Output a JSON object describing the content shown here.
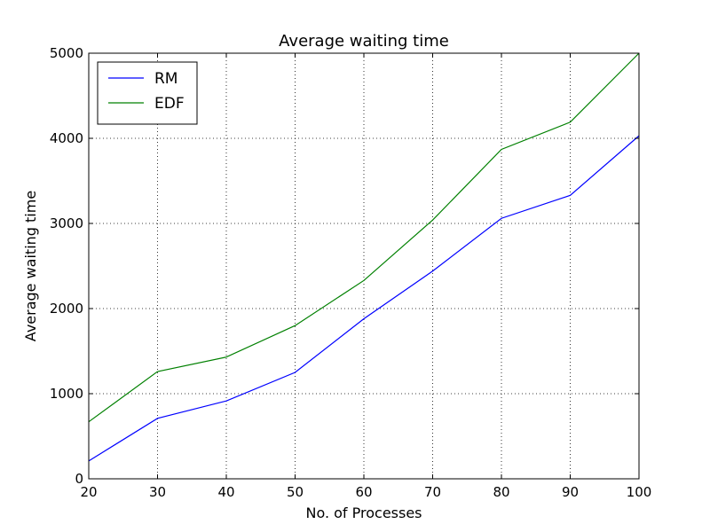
{
  "chart_data": {
    "type": "line",
    "title": "Average waiting time",
    "xlabel": "No. of Processes",
    "ylabel": "Average waiting time",
    "x": [
      20,
      30,
      40,
      50,
      60,
      70,
      80,
      90,
      100
    ],
    "xlim": [
      20,
      100
    ],
    "ylim": [
      0,
      5000
    ],
    "xticks": [
      20,
      30,
      40,
      50,
      60,
      70,
      80,
      90,
      100
    ],
    "yticks": [
      0,
      1000,
      2000,
      3000,
      4000,
      5000
    ],
    "grid": true,
    "legend_position": "top-left",
    "series": [
      {
        "name": "RM",
        "color": "#0000ff",
        "values": [
          210,
          710,
          915,
          1250,
          1880,
          2440,
          3060,
          3330,
          4030
        ]
      },
      {
        "name": "EDF",
        "color": "#008000",
        "values": [
          670,
          1260,
          1430,
          1800,
          2330,
          3040,
          3870,
          4190,
          5000
        ]
      }
    ]
  }
}
